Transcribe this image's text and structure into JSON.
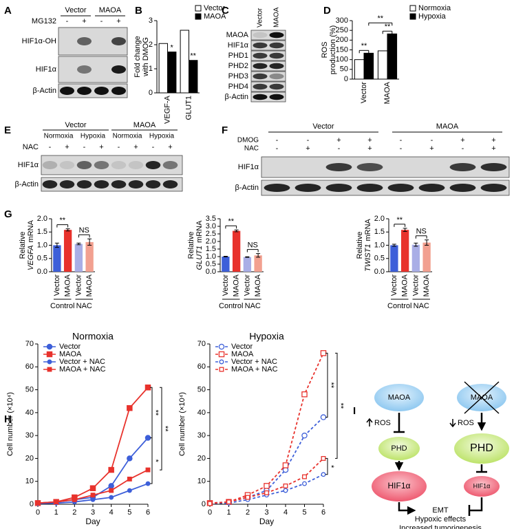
{
  "panels": [
    "A",
    "B",
    "C",
    "D",
    "E",
    "F",
    "G",
    "H",
    "I"
  ],
  "blot_a": {
    "groups": [
      "Vector",
      "MAOA"
    ],
    "treatment": "MG132",
    "signs": [
      "-",
      "+",
      "-",
      "+"
    ],
    "rows": [
      "HIF1α-OH",
      "HIF1α",
      "β-Actin"
    ]
  },
  "blot_c": {
    "lanes": [
      "Vector",
      "MAOA"
    ],
    "rows": [
      "MAOA",
      "HIF1α",
      "PHD1",
      "PHD2",
      "PHD3",
      "PHD4",
      "β-Actin"
    ]
  },
  "blot_e": {
    "groups": [
      "Vector",
      "MAOA"
    ],
    "conditions": [
      "Normoxia",
      "Hypoxia",
      "Normoxia",
      "Hypoxia"
    ],
    "treatment": "NAC",
    "signs": [
      "-",
      "+",
      "-",
      "+",
      "-",
      "+",
      "-",
      "+"
    ],
    "rows": [
      "HIF1α",
      "β-Actin"
    ]
  },
  "blot_f": {
    "groups": [
      "Vector",
      "MAOA"
    ],
    "treatments": [
      {
        "name": "DMOG",
        "signs": [
          "-",
          "-",
          "+",
          "+",
          "-",
          "-",
          "+",
          "+"
        ]
      },
      {
        "name": "NAC",
        "signs": [
          "-",
          "+",
          "-",
          "+",
          "-",
          "+",
          "-",
          "+"
        ]
      }
    ],
    "rows": [
      "HIF1α",
      "β-Actin"
    ]
  },
  "chart_data": [
    {
      "type": "bar",
      "ylabel": [
        "Fold change",
        "with DMOG"
      ],
      "categories": [
        "VEGF-A",
        "GLUT1"
      ],
      "series": [
        {
          "name": "Vector",
          "color": "#ffffff",
          "values": [
            2.05,
            2.6
          ]
        },
        {
          "name": "MAOA",
          "color": "#000000",
          "values": [
            1.7,
            1.35
          ]
        }
      ],
      "ylim": [
        0,
        3
      ],
      "yticks": [
        0,
        1,
        2,
        3
      ],
      "annotations": [
        "*",
        "**"
      ]
    },
    {
      "type": "bar",
      "ylabel": [
        "ROS",
        "production (%)"
      ],
      "categories": [
        "Vector",
        "MAOA"
      ],
      "series": [
        {
          "name": "Normoxia",
          "color": "#ffffff",
          "values": [
            100,
            145
          ]
        },
        {
          "name": "Hypoxia",
          "color": "#000000",
          "values": [
            133,
            232
          ]
        }
      ],
      "ylim": [
        0,
        300
      ],
      "yticks": [
        0,
        50,
        100,
        150,
        200,
        250,
        300
      ],
      "annotations": [
        "**",
        "**",
        "**"
      ]
    },
    {
      "type": "bar",
      "ylabel": [
        "Relative",
        "VEGFA",
        "mRNA"
      ],
      "categories": [
        "Vector",
        "MAOA",
        "Vector",
        "MAOA"
      ],
      "groups": [
        "Control",
        "NAC"
      ],
      "values": [
        1.0,
        1.58,
        1.05,
        1.12
      ],
      "errors": [
        0.08,
        0.04,
        0.03,
        0.12
      ],
      "colors": [
        "#3d5fd9",
        "#e8322c",
        "#a9aee6",
        "#f2a090"
      ],
      "ylim": [
        0,
        2.0
      ],
      "yticks": [
        {
          "value": 0,
          "label": "0.0"
        },
        {
          "value": 0.5,
          "label": "0.5"
        },
        {
          "value": 1,
          "label": "1.0"
        },
        {
          "value": 1.5,
          "label": "1.5"
        },
        {
          "value": 2,
          "label": "2.0"
        }
      ],
      "annotations": [
        "**",
        "NS"
      ]
    },
    {
      "type": "bar",
      "ylabel": [
        "Relative",
        "GLUT1",
        "mRNA"
      ],
      "categories": [
        "Vector",
        "MAOA",
        "Vector",
        "MAOA"
      ],
      "groups": [
        "Control",
        "NAC"
      ],
      "values": [
        1.0,
        2.7,
        0.97,
        1.08
      ],
      "errors": [
        0.02,
        0.06,
        0.02,
        0.12
      ],
      "colors": [
        "#3d5fd9",
        "#e8322c",
        "#a9aee6",
        "#f2a090"
      ],
      "ylim": [
        0,
        3.5
      ],
      "yticks": [
        {
          "value": 0,
          "label": "0.0"
        },
        {
          "value": 0.5,
          "label": "0.5"
        },
        {
          "value": 1,
          "label": "1.0"
        },
        {
          "value": 1.5,
          "label": "1.5"
        },
        {
          "value": 2,
          "label": "2.0"
        },
        {
          "value": 2.5,
          "label": "2.5"
        },
        {
          "value": 3,
          "label": "3.0"
        },
        {
          "value": 3.5,
          "label": "3.5"
        }
      ],
      "annotations": [
        "**",
        "NS"
      ]
    },
    {
      "type": "bar",
      "ylabel": [
        "Relative",
        "TWIST1",
        "mRNA"
      ],
      "categories": [
        "Vector",
        "MAOA",
        "Vector",
        "MAOA"
      ],
      "groups": [
        "Control",
        "NAC"
      ],
      "values": [
        1.0,
        1.58,
        1.02,
        1.1
      ],
      "errors": [
        0.04,
        0.06,
        0.06,
        0.1
      ],
      "colors": [
        "#3d5fd9",
        "#e8322c",
        "#a9aee6",
        "#f2a090"
      ],
      "ylim": [
        0,
        2.0
      ],
      "yticks": [
        {
          "value": 0,
          "label": "0.0"
        },
        {
          "value": 0.5,
          "label": "0.5"
        },
        {
          "value": 1,
          "label": "1.0"
        },
        {
          "value": 1.5,
          "label": "1.5"
        },
        {
          "value": 2,
          "label": "2.0"
        }
      ],
      "annotations": [
        "**",
        "NS"
      ]
    },
    {
      "type": "line",
      "title": "Normoxia",
      "xlabel": "Day",
      "ylabel": "Cell number (×10⁴)",
      "x": [
        0,
        1,
        2,
        3,
        4,
        5,
        6
      ],
      "xlim": [
        0,
        6
      ],
      "xticks": [
        0,
        1,
        2,
        3,
        4,
        5,
        6
      ],
      "ylim": [
        0,
        70
      ],
      "yticks": [
        0,
        10,
        20,
        30,
        40,
        50,
        60,
        70
      ],
      "legend": "upper left",
      "dashed": false,
      "series": [
        {
          "name": "Vector",
          "color": "#3d5fd9",
          "marker": "circle",
          "values": [
            0.5,
            1,
            2,
            3,
            8,
            20,
            29
          ]
        },
        {
          "name": "MAOA",
          "color": "#e8322c",
          "marker": "square",
          "values": [
            0.5,
            1,
            3,
            7,
            15,
            42,
            51
          ]
        },
        {
          "name": "Vector + NAC",
          "color": "#3d5fd9",
          "marker": "circle",
          "values": [
            0.3,
            0.5,
            1,
            2,
            3,
            6,
            9
          ]
        },
        {
          "name": "MAOA + NAC",
          "color": "#e8322c",
          "marker": "square",
          "values": [
            0.5,
            1,
            2,
            4,
            6,
            11,
            15
          ]
        }
      ],
      "annotations": [
        "**",
        "*",
        "**"
      ]
    },
    {
      "type": "line",
      "title": "Hypoxia",
      "xlabel": "Day",
      "ylabel": "Cell number (×10⁴)",
      "x": [
        0,
        1,
        2,
        3,
        4,
        5,
        6
      ],
      "xlim": [
        0,
        6
      ],
      "xticks": [
        0,
        1,
        2,
        3,
        4,
        5,
        6
      ],
      "ylim": [
        0,
        70
      ],
      "yticks": [
        0,
        10,
        20,
        30,
        40,
        50,
        60,
        70
      ],
      "legend": "upper left",
      "dashed": true,
      "series": [
        {
          "name": "Vector",
          "color": "#3d5fd9",
          "marker": "circle",
          "values": [
            0.5,
            1,
            3,
            6,
            15,
            30,
            38
          ]
        },
        {
          "name": "MAOA",
          "color": "#e8322c",
          "marker": "square",
          "values": [
            0.5,
            1,
            4,
            8,
            17,
            48,
            66
          ]
        },
        {
          "name": "Vector + NAC",
          "color": "#3d5fd9",
          "marker": "circle",
          "values": [
            0.3,
            0.5,
            2,
            4,
            6,
            9,
            13
          ]
        },
        {
          "name": "MAOA + NAC",
          "color": "#e8322c",
          "marker": "square",
          "values": [
            0.3,
            1,
            3,
            5,
            8,
            12,
            20
          ]
        }
      ],
      "annotations": [
        "**",
        "*",
        "**"
      ]
    }
  ],
  "diagram": {
    "left": [
      "MAOA",
      "PHD",
      "HIF1α"
    ],
    "right": [
      "MAOA",
      "PHD",
      "HIF1α"
    ],
    "ros": [
      "ROS",
      "ROS"
    ],
    "outcomes": [
      "EMT",
      "Hypoxic effects",
      "Increased tumorigenesis"
    ]
  }
}
